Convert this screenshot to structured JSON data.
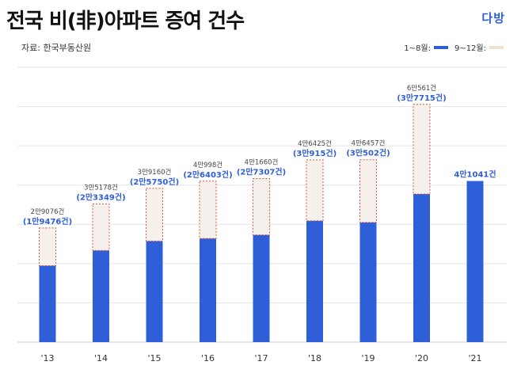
{
  "header": {
    "title": "전국 비(非)아파트 증여 건수",
    "logo": "다방",
    "source": "자료: 한국부동산원"
  },
  "legend": {
    "series_a": "1~8월:",
    "series_b": "9~12월:"
  },
  "colors": {
    "jan_aug": "#2f5fd8",
    "sep_dec_fill": "#f5f0ec",
    "sep_dec_border": "#d9553b"
  },
  "chart_data": {
    "type": "bar",
    "stacked": true,
    "categories": [
      "'13",
      "'14",
      "'15",
      "'16",
      "'17",
      "'18",
      "'19",
      "'20",
      "'21"
    ],
    "series": [
      {
        "name": "1~8월",
        "values": [
          19476,
          23349,
          25750,
          26403,
          27307,
          30915,
          30502,
          37715,
          41041
        ]
      },
      {
        "name": "9~12월",
        "values": [
          9600,
          11829,
          13410,
          14595,
          14353,
          15510,
          15955,
          22846,
          0
        ]
      }
    ],
    "totals": [
      29076,
      35178,
      39160,
      40998,
      41660,
      46425,
      46457,
      60561,
      41041
    ],
    "total_labels": [
      "2만9076건",
      "3만5178건",
      "3만9160건",
      "4만998건",
      "4만1660건",
      "4만6425건",
      "4만6457건",
      "6만561건",
      ""
    ],
    "part_labels": [
      "(1만9476건)",
      "(2만3349건)",
      "(2만5750건)",
      "(2만6403건)",
      "(2만7307건)",
      "(3만915건)",
      "(3만502건)",
      "(3만7715건)",
      "4만1041건"
    ],
    "ylim": [
      0,
      70000
    ],
    "grid": true
  }
}
